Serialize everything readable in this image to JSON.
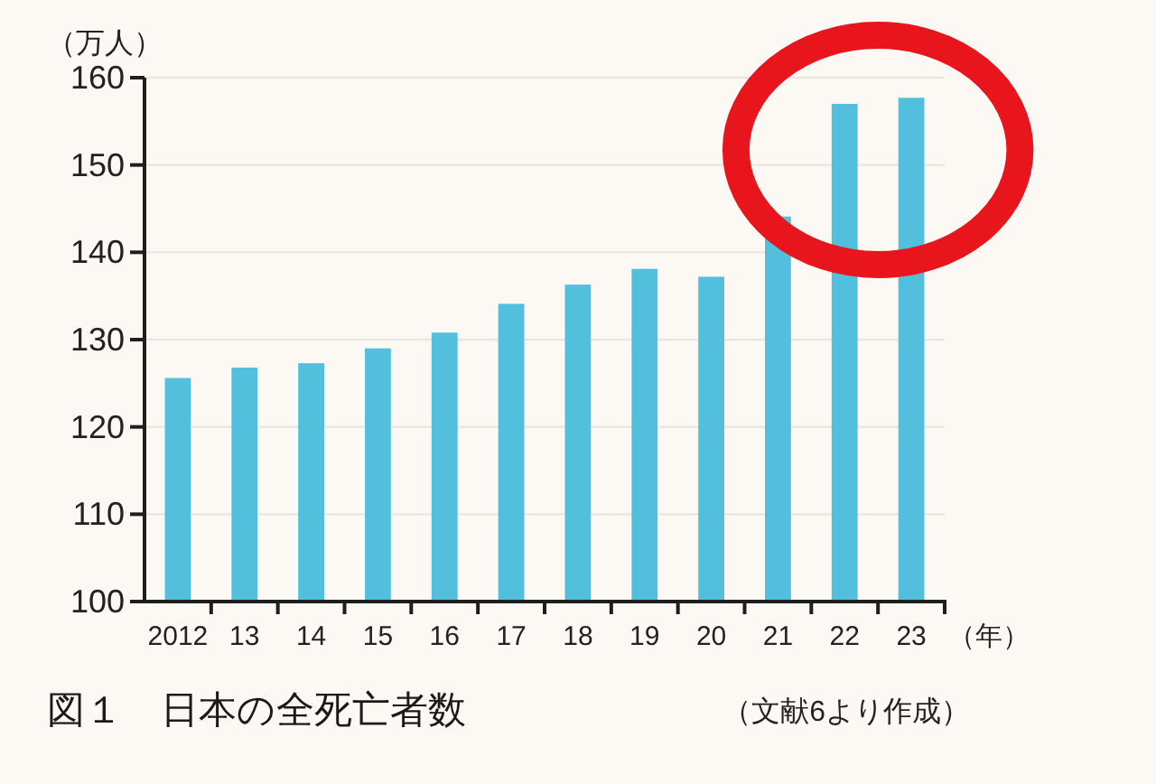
{
  "chart_data": {
    "type": "bar",
    "title": "図１　日本の全死亡者数",
    "ylabel": "（万人）",
    "xlabel": "（年）",
    "categories": [
      "2012",
      "13",
      "14",
      "15",
      "16",
      "17",
      "18",
      "19",
      "20",
      "21",
      "22",
      "23"
    ],
    "values": [
      125.6,
      126.8,
      127.3,
      129.0,
      130.8,
      134.1,
      136.3,
      138.1,
      137.2,
      144.1,
      157.0,
      157.7
    ],
    "color": "#52c0dc",
    "ylim": [
      100,
      160
    ],
    "yticks": [
      100,
      110,
      120,
      130,
      140,
      150,
      160
    ],
    "grid": "y",
    "annotations": [
      "（文献6より作成）"
    ]
  }
}
